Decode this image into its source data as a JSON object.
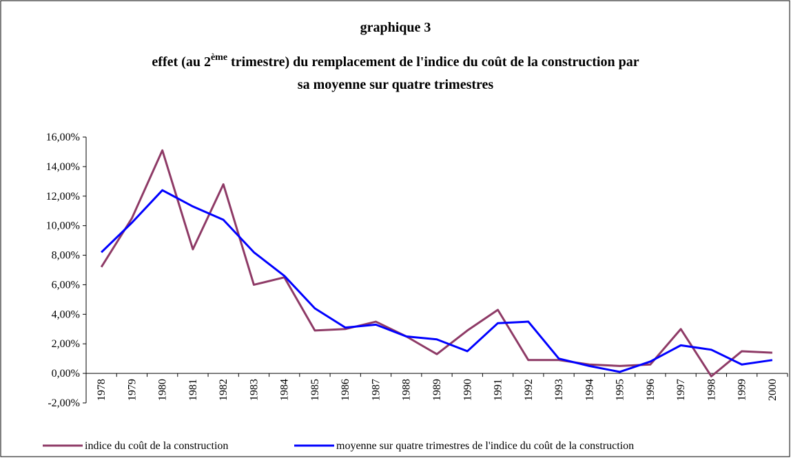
{
  "chart_data": {
    "type": "line",
    "title": [
      "graphique 3",
      "effet (au 2",
      "ème",
      " trimestre) du remplacement de l'indice du coût de la construction par",
      "sa moyenne sur quatre trimestres"
    ],
    "categories": [
      "1978",
      "1979",
      "1980",
      "1981",
      "1982",
      "1983",
      "1984",
      "1985",
      "1986",
      "1987",
      "1988",
      "1989",
      "1990",
      "1991",
      "1992",
      "1993",
      "1994",
      "1995",
      "1996",
      "1997",
      "1998",
      "1999",
      "2000"
    ],
    "series": [
      {
        "name": "indice du coût de la construction",
        "color": "#8e3a66",
        "values": [
          7.2,
          10.5,
          15.1,
          8.4,
          12.8,
          6.0,
          6.5,
          2.9,
          3.0,
          3.5,
          2.5,
          1.3,
          2.9,
          4.3,
          0.9,
          0.9,
          0.6,
          0.5,
          0.6,
          3.0,
          -0.2,
          1.5,
          1.4
        ]
      },
      {
        "name": "moyenne sur quatre trimestres de l'indice du coût de la construction",
        "color": "#0000ff",
        "values": [
          8.2,
          10.2,
          12.4,
          11.3,
          10.4,
          8.2,
          6.6,
          4.4,
          3.1,
          3.3,
          2.5,
          2.3,
          1.5,
          3.4,
          3.5,
          1.0,
          0.5,
          0.1,
          0.8,
          1.9,
          1.6,
          0.6,
          0.9
        ]
      }
    ],
    "ylim": [
      -2,
      16
    ],
    "yticks": [
      {
        "value": -2,
        "label": "-2,00%"
      },
      {
        "value": 0,
        "label": "0,00%"
      },
      {
        "value": 2,
        "label": "2,00%"
      },
      {
        "value": 4,
        "label": "4,00%"
      },
      {
        "value": 6,
        "label": "6,00%"
      },
      {
        "value": 8,
        "label": "8,00%"
      },
      {
        "value": 10,
        "label": "10,00%"
      },
      {
        "value": 12,
        "label": "12,00%"
      },
      {
        "value": 14,
        "label": "14,00%"
      },
      {
        "value": 16,
        "label": "16,00%"
      }
    ],
    "grid": false
  }
}
